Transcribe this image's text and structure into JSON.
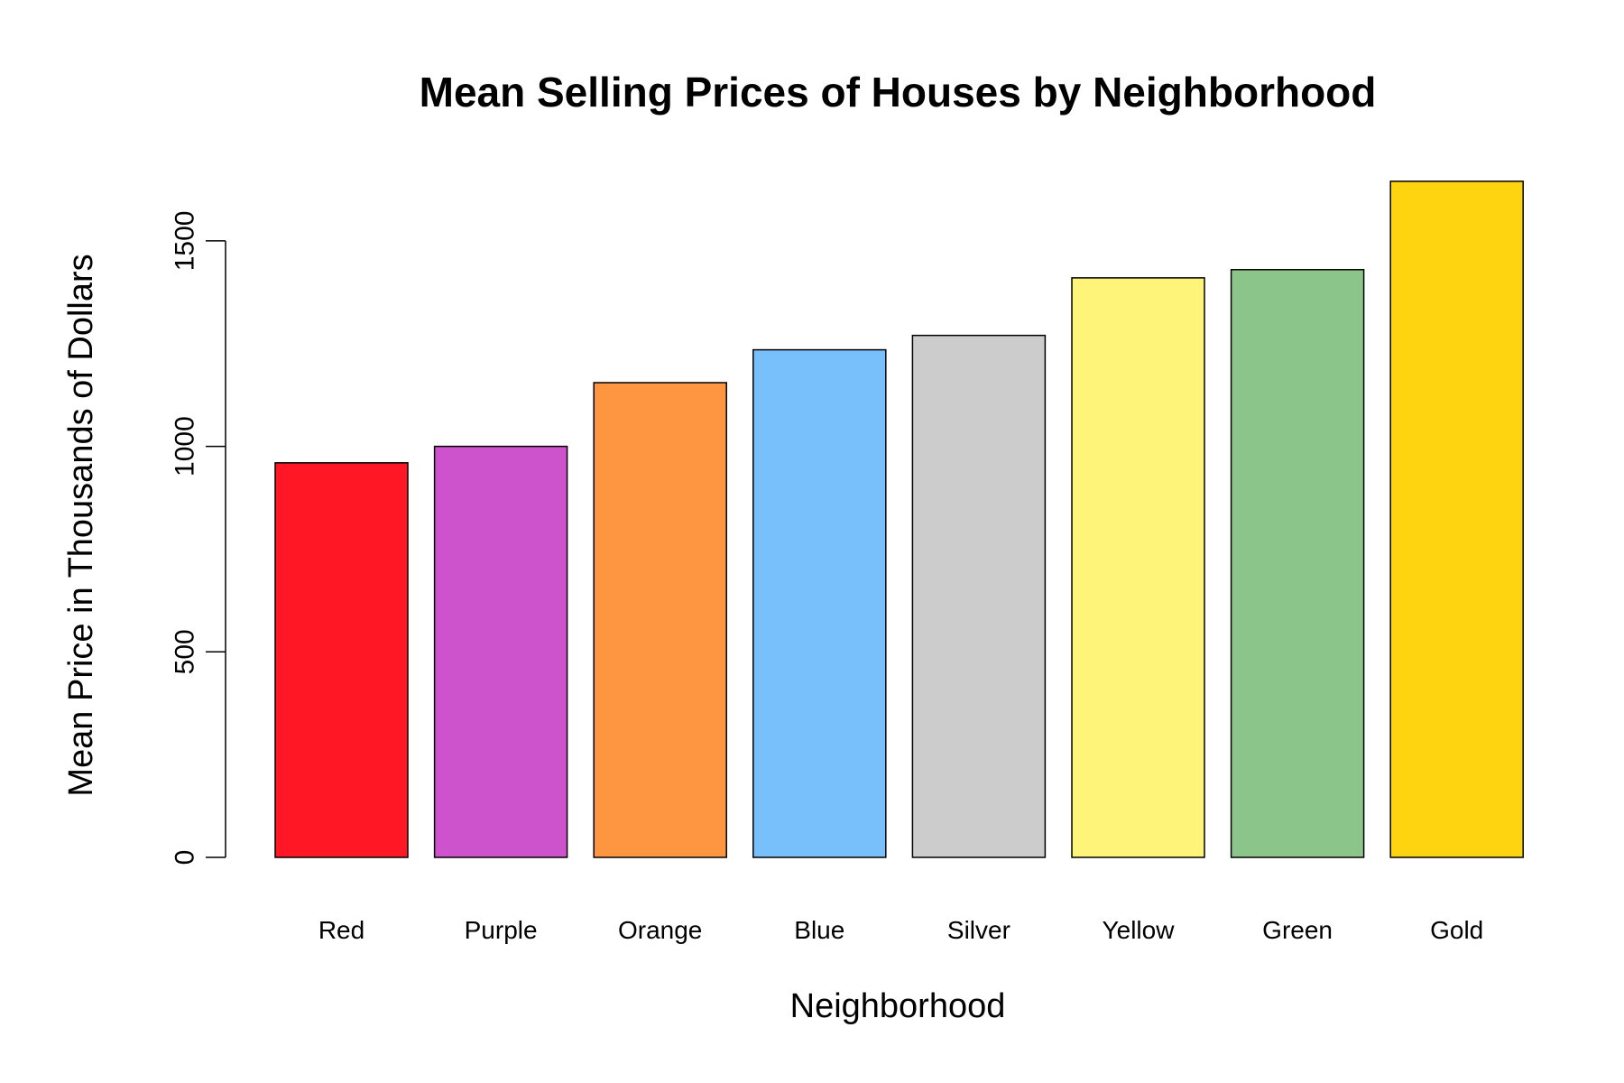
{
  "chart_data": {
    "type": "bar",
    "title": "Mean Selling Prices of Houses by Neighborhood",
    "xlabel": "Neighborhood",
    "ylabel": "Mean Price in Thousands of Dollars",
    "categories": [
      "Red",
      "Purple",
      "Orange",
      "Blue",
      "Silver",
      "Yellow",
      "Green",
      "Gold"
    ],
    "values": [
      960,
      1000,
      1155,
      1235,
      1270,
      1410,
      1430,
      1645
    ],
    "colors": [
      "#ff1726",
      "#cc53cc",
      "#fd9541",
      "#77c0fc",
      "#cccccc",
      "#fff47a",
      "#8cc589",
      "#fed30f"
    ],
    "yticks": [
      "0",
      "500",
      "1000",
      "1500"
    ],
    "ytick_values": [
      0,
      500,
      1000,
      1500
    ],
    "ylim": [
      0,
      1645
    ],
    "grid": false,
    "legend": "none"
  }
}
